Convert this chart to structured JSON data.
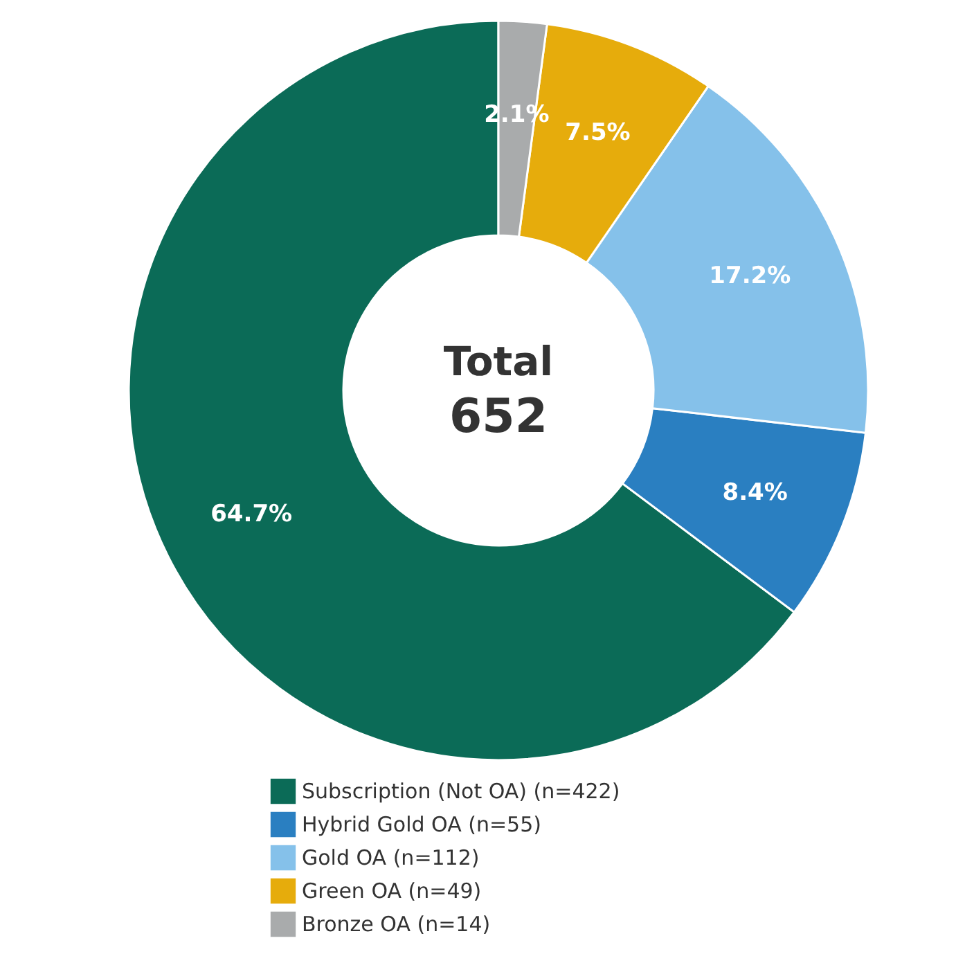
{
  "chart_data": {
    "type": "donut",
    "categories": [
      "Subscription (Not OA) (n=422)",
      "Hybrid Gold OA (n=55)",
      "Gold OA (n=112)",
      "Green OA (n=49)",
      "Bronze OA (n=14)"
    ],
    "values": [
      64.7,
      8.4,
      17.2,
      7.5,
      2.1
    ],
    "value_labels": [
      "64.7%",
      "8.4%",
      "17.2%",
      "7.5%",
      "2.1%"
    ],
    "colors": [
      "#0b6b57",
      "#2a7fc1",
      "#85c1ea",
      "#e6ac0c",
      "#a9abac"
    ],
    "annotations": [
      "Total",
      "652"
    ],
    "legend": "bottom"
  }
}
